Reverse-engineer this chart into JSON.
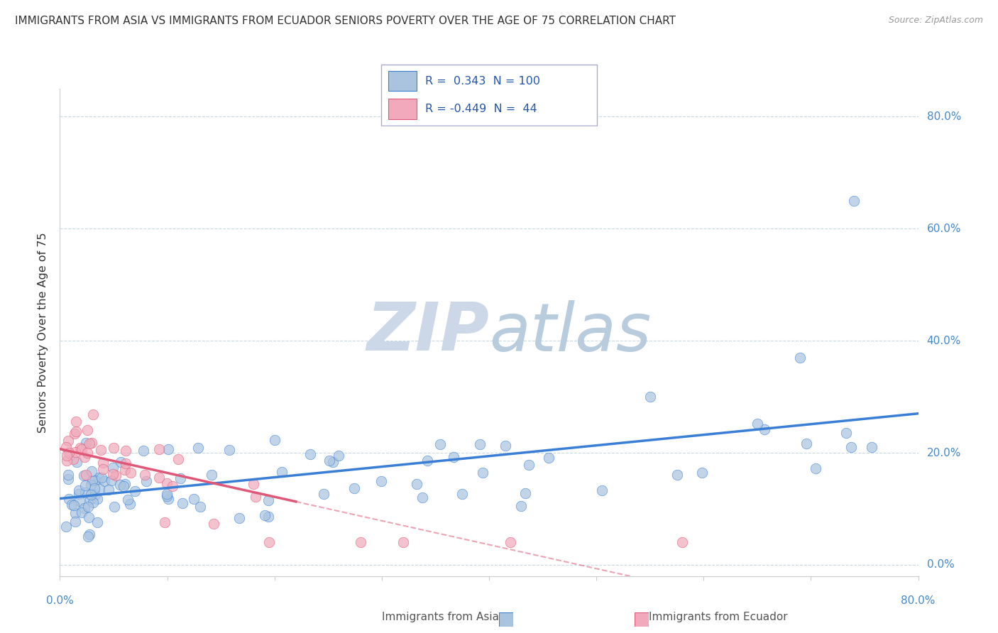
{
  "title": "IMMIGRANTS FROM ASIA VS IMMIGRANTS FROM ECUADOR SENIORS POVERTY OVER THE AGE OF 75 CORRELATION CHART",
  "source": "Source: ZipAtlas.com",
  "ylabel": "Seniors Poverty Over the Age of 75",
  "xlim": [
    0,
    0.8
  ],
  "ylim": [
    -0.02,
    0.85
  ],
  "yticks": [
    0.0,
    0.2,
    0.4,
    0.6,
    0.8
  ],
  "ytick_labels": [
    "0.0%",
    "20.0%",
    "40.0%",
    "60.0%",
    "80.0%"
  ],
  "legend_R_asia": "0.343",
  "legend_N_asia": "100",
  "legend_R_ecuador": "-0.449",
  "legend_N_ecuador": "44",
  "color_asia": "#aac4e0",
  "color_ecuador": "#f0aabb",
  "line_color_asia": "#3a7fd5",
  "line_color_ecuador": "#e05878",
  "watermark": "ZIPatlas",
  "watermark_color_zip": "#c8d8e8",
  "watermark_color_atlas": "#b0c8dc",
  "title_fontsize": 11,
  "grid_color": "#c8d8e0",
  "axis_color": "#cccccc",
  "tick_label_color": "#4488cc",
  "bottom_legend_color": "#555555"
}
